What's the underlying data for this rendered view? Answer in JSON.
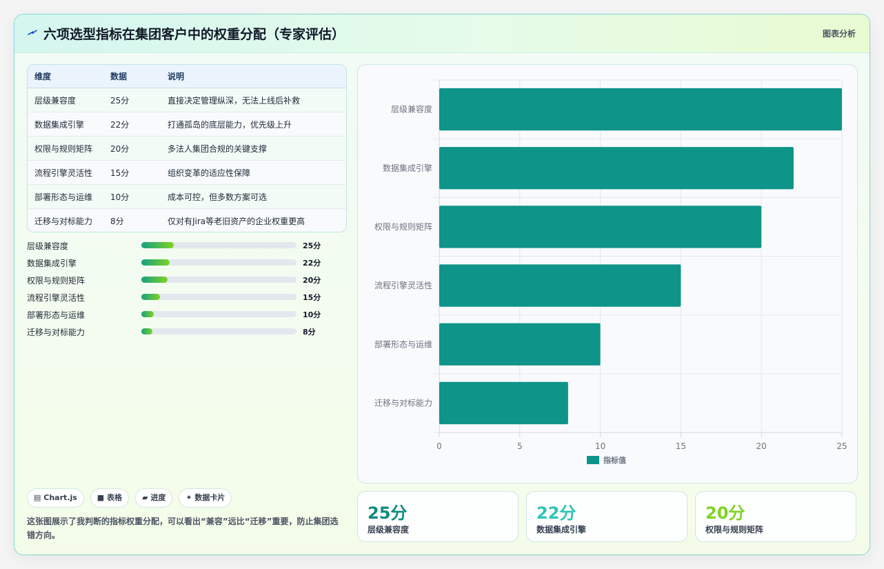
{
  "header": {
    "title": "六项选型指标在集团客户中的权重分配（专家评估）",
    "tag": "图表分析",
    "icon": "lightning-icon"
  },
  "table": {
    "headers": [
      "维度",
      "数据",
      "说明"
    ],
    "rows": [
      {
        "dim": "层级兼容度",
        "score": "25分",
        "desc": "直接决定管理纵深，无法上线后补救"
      },
      {
        "dim": "数据集成引擎",
        "score": "22分",
        "desc": "打通孤岛的底层能力，优先级上升"
      },
      {
        "dim": "权限与规则矩阵",
        "score": "20分",
        "desc": "多法人集团合规的关键支撑"
      },
      {
        "dim": "流程引擎灵活性",
        "score": "15分",
        "desc": "组织变革的适应性保障"
      },
      {
        "dim": "部署形态与运维",
        "score": "10分",
        "desc": "成本可控，但多数方案可选"
      },
      {
        "dim": "迁移与对标能力",
        "score": "8分",
        "desc": "仅对有Jira等老旧资产的企业权重更高"
      }
    ]
  },
  "progress": {
    "items": [
      {
        "label": "层级兼容度",
        "value": "25分",
        "fraction": 0.21
      },
      {
        "label": "数据集成引擎",
        "value": "22分",
        "fraction": 0.18
      },
      {
        "label": "权限与规则矩阵",
        "value": "20分",
        "fraction": 0.17
      },
      {
        "label": "流程引擎灵活性",
        "value": "15分",
        "fraction": 0.12
      },
      {
        "label": "部署形态与运维",
        "value": "10分",
        "fraction": 0.08
      },
      {
        "label": "迁移与对标能力",
        "value": "8分",
        "fraction": 0.07
      }
    ]
  },
  "chips": [
    {
      "icon": "chart-icon",
      "glyph": "▤",
      "label": "Chart.js"
    },
    {
      "icon": "table-icon",
      "glyph": "■",
      "label": "表格"
    },
    {
      "icon": "progress-icon",
      "glyph": "▰",
      "label": "进度"
    },
    {
      "icon": "sparkle-icon",
      "glyph": "✦",
      "label": "数据卡片"
    }
  ],
  "note": "这张图展示了我判断的指标权重分配，可以看出“兼容”远比“迁移”重要，防止集团选错方向。",
  "stats": [
    {
      "value": "25分",
      "label": "层级兼容度",
      "color": "#0f8b7e"
    },
    {
      "value": "22分",
      "label": "数据集成引擎",
      "color": "#2ec4b6"
    },
    {
      "value": "20分",
      "label": "权限与规则矩阵",
      "color": "#7ed321"
    }
  ],
  "chart_data": {
    "type": "bar",
    "orientation": "horizontal",
    "categories": [
      "层级兼容度",
      "数据集成引擎",
      "权限与规则矩阵",
      "流程引擎灵活性",
      "部署形态与运维",
      "迁移与对标能力"
    ],
    "series": [
      {
        "name": "指标值",
        "values": [
          25,
          22,
          20,
          15,
          10,
          8
        ],
        "color": "#0e9488"
      }
    ],
    "xlim": [
      0,
      25
    ],
    "xticks": [
      0,
      5,
      10,
      15,
      20,
      25
    ],
    "grid": true,
    "legend": "bottom"
  }
}
